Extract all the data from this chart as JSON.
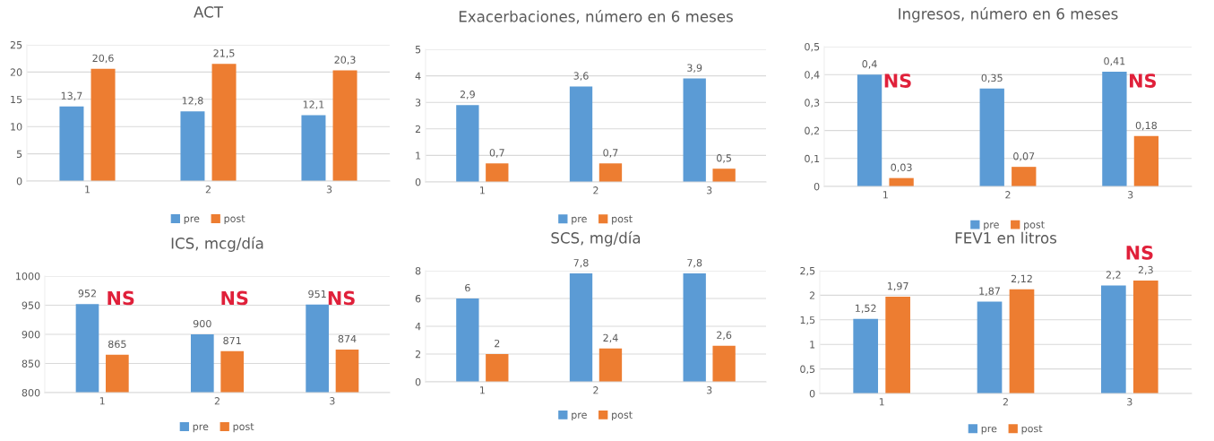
{
  "chart_data": [
    {
      "type": "bar",
      "title": "ACT",
      "categories": [
        "1",
        "2",
        "3"
      ],
      "ylim": [
        0,
        25
      ],
      "yticks": [
        0,
        5,
        10,
        15,
        20,
        25
      ],
      "grid": "y",
      "legend": "bottom",
      "series": [
        {
          "name": "pre",
          "color": "#5b9bd5",
          "values": [
            13.7,
            12.8,
            12.1
          ],
          "value_labels": [
            "13,7",
            "12,8",
            "12,1"
          ]
        },
        {
          "name": "post",
          "color": "#ed7d31",
          "values": [
            20.6,
            21.5,
            20.3
          ],
          "value_labels": [
            "20,6",
            "21,5",
            "20,3"
          ]
        }
      ]
    },
    {
      "type": "bar",
      "title": "Exacerbaciones, número en 6 meses",
      "categories": [
        "1",
        "2",
        "3"
      ],
      "ylim": [
        0,
        5
      ],
      "yticks": [
        0,
        1,
        2,
        3,
        4,
        5
      ],
      "grid": "y",
      "legend": "bottom",
      "series": [
        {
          "name": "pre",
          "color": "#5b9bd5",
          "values": [
            2.9,
            3.6,
            3.9
          ],
          "value_labels": [
            "2,9",
            "3,6",
            "3,9"
          ]
        },
        {
          "name": "post",
          "color": "#ed7d31",
          "values": [
            0.7,
            0.7,
            0.5
          ],
          "value_labels": [
            "0,7",
            "0,7",
            "0,5"
          ]
        }
      ]
    },
    {
      "type": "bar",
      "title": "Ingresos, número en 6 meses",
      "categories": [
        "1",
        "2",
        "3"
      ],
      "ylim": [
        0,
        0.5
      ],
      "yticks": [
        0,
        {
          "value": 0.1,
          "label": "0,1"
        },
        {
          "value": 0.2,
          "label": "0,2"
        },
        {
          "value": 0.3,
          "label": "0,3"
        },
        {
          "value": 0.4,
          "label": "0,4"
        },
        {
          "value": 0.5,
          "label": "0,5"
        }
      ],
      "grid": "y",
      "legend": "bottom",
      "annotations": [
        {
          "text": "NS",
          "x": "1",
          "y": 0.34
        },
        {
          "text": "NS",
          "x": "3",
          "y": 0.34
        }
      ],
      "series": [
        {
          "name": "pre",
          "color": "#5b9bd5",
          "values": [
            0.4,
            0.35,
            0.41
          ],
          "value_labels": [
            "0,4",
            "0,35",
            "0,41"
          ]
        },
        {
          "name": "post",
          "color": "#ed7d31",
          "values": [
            0.03,
            0.07,
            0.18
          ],
          "value_labels": [
            "0,03",
            "0,07",
            "0,18"
          ]
        }
      ]
    },
    {
      "type": "bar",
      "title": "ICS, mcg/día",
      "categories": [
        "1",
        "2",
        "3"
      ],
      "ylim": [
        800,
        1000
      ],
      "yticks": [
        800,
        850,
        900,
        950,
        1000
      ],
      "grid": "y",
      "legend": "bottom",
      "annotations": [
        "NS",
        "NS",
        "NS"
      ],
      "series": [
        {
          "name": "pre",
          "color": "#5b9bd5",
          "values": [
            952,
            900,
            951
          ],
          "value_labels": [
            "952",
            "900",
            "951"
          ]
        },
        {
          "name": "post",
          "color": "#ed7d31",
          "values": [
            865,
            871,
            874
          ],
          "value_labels": [
            "865",
            "871",
            "874"
          ]
        }
      ]
    },
    {
      "type": "bar",
      "title": "SCS, mg/día",
      "categories": [
        "1",
        "2",
        "3"
      ],
      "ylim": [
        0,
        8
      ],
      "yticks": [
        0,
        2,
        4,
        6,
        8
      ],
      "grid": "y",
      "legend": "bottom",
      "series": [
        {
          "name": "pre",
          "color": "#5b9bd5",
          "values": [
            6,
            7.8,
            7.8
          ],
          "value_labels": [
            "6",
            "7,8",
            "7,8"
          ]
        },
        {
          "name": "post",
          "color": "#ed7d31",
          "values": [
            2,
            2.4,
            2.6
          ],
          "value_labels": [
            "2",
            "2,4",
            "2,6"
          ]
        }
      ]
    },
    {
      "type": "bar",
      "title": "FEV1 en litros",
      "categories": [
        "1",
        "2",
        "3"
      ],
      "ylim": [
        0,
        2.5
      ],
      "yticks": [
        0,
        {
          "value": 0.5,
          "label": "0,5"
        },
        1,
        {
          "value": 1.5,
          "label": "1,5"
        },
        2,
        {
          "value": 2.5,
          "label": "2,5"
        }
      ],
      "grid": "y",
      "legend": "bottom",
      "annotations": [
        "NS"
      ],
      "series": [
        {
          "name": "pre",
          "color": "#5b9bd5",
          "values": [
            1.52,
            1.87,
            2.2
          ],
          "value_labels": [
            "1,52",
            "1,87",
            "2,2"
          ]
        },
        {
          "name": "post",
          "color": "#ed7d31",
          "values": [
            1.97,
            2.12,
            2.3
          ],
          "value_labels": [
            "1,97",
            "2,12",
            "2,3"
          ]
        }
      ]
    }
  ]
}
